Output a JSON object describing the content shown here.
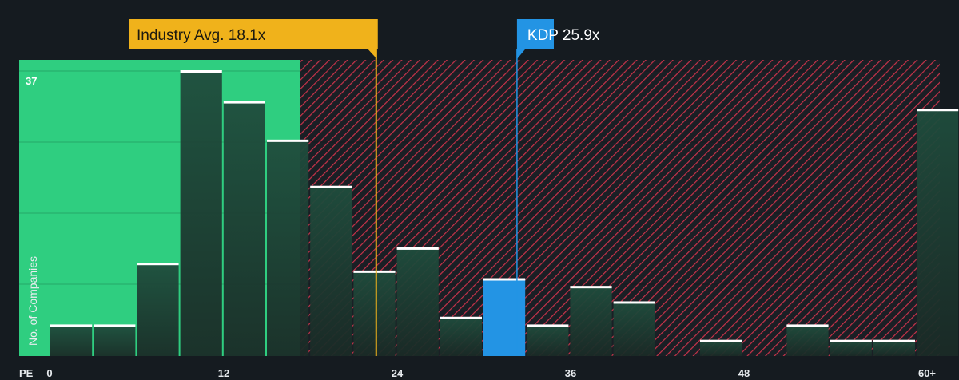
{
  "chart_data": {
    "type": "bar",
    "xlabel": "PE",
    "ylabel": "No. of Companies",
    "x_ticks": [
      "0",
      "12",
      "24",
      "36",
      "48",
      "60+"
    ],
    "y_max_label": "37",
    "ylim": [
      0,
      37
    ],
    "bin_width": 2.4,
    "bins": [
      {
        "x": 0,
        "count": 4
      },
      {
        "x": 2.4,
        "count": 4
      },
      {
        "x": 4.8,
        "count": 12
      },
      {
        "x": 7.2,
        "count": 37
      },
      {
        "x": 9.6,
        "count": 33
      },
      {
        "x": 12.0,
        "count": 28
      },
      {
        "x": 14.4,
        "count": 22
      },
      {
        "x": 16.8,
        "count": 11
      },
      {
        "x": 19.2,
        "count": 14
      },
      {
        "x": 21.6,
        "count": 5
      },
      {
        "x": 24.0,
        "count": 10
      },
      {
        "x": 26.4,
        "count": 4
      },
      {
        "x": 28.8,
        "count": 9
      },
      {
        "x": 31.2,
        "count": 7
      },
      {
        "x": 36.0,
        "count": 2
      },
      {
        "x": 40.8,
        "count": 4
      },
      {
        "x": 43.2,
        "count": 2
      },
      {
        "x": 45.6,
        "count": 2
      },
      {
        "x": 48.0,
        "count": 32
      }
    ],
    "industry_avg": {
      "label": "Industry Avg. 18.1x",
      "value": 18.1
    },
    "company": {
      "label": "KDP 25.9x",
      "value": 25.9
    },
    "colors": {
      "background": "#151b20",
      "good_zone": "#2fce80",
      "bar": "#1e4a3b",
      "bar_cap": "#ffffff",
      "highlight": "#2394e4",
      "hatch": "#d3394a",
      "industry": "#f0b21b"
    }
  }
}
